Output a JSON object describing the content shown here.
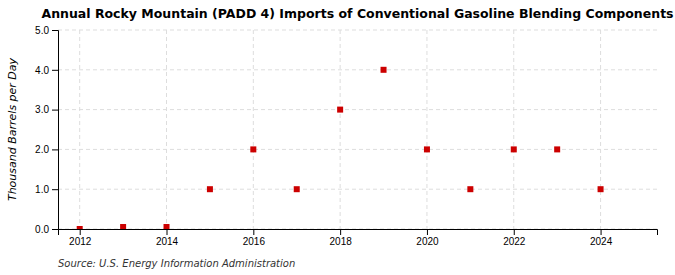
{
  "chart_data": {
    "type": "scatter",
    "title": "Annual Rocky Mountain (PADD 4) Imports of Conventional Gasoline Blending Components",
    "ylabel": "Thousand Barrels per Day",
    "source": "Source: U.S. Energy Information Administration",
    "x": [
      2012,
      2013,
      2014,
      2015,
      2016,
      2017,
      2018,
      2019,
      2020,
      2021,
      2022,
      2023,
      2024
    ],
    "values": [
      0.0,
      0.05,
      0.05,
      1.0,
      2.0,
      1.0,
      3.0,
      4.0,
      2.0,
      1.0,
      2.0,
      2.0,
      1.0
    ],
    "color": "#cc0000",
    "marker": "square",
    "xlim": [
      2011.5,
      2025.3
    ],
    "xticks": [
      2012,
      2014,
      2016,
      2018,
      2020,
      2022,
      2024
    ],
    "ylim": [
      0.0,
      5.0
    ],
    "yticks": [
      {
        "value": 0.0,
        "label": "0.0"
      },
      {
        "value": 1.0,
        "label": "1.0"
      },
      {
        "value": 2.0,
        "label": "2.0"
      },
      {
        "value": 3.0,
        "label": "3.0"
      },
      {
        "value": 4.0,
        "label": "4.0"
      },
      {
        "value": 5.0,
        "label": "5.0"
      }
    ],
    "grid": true
  }
}
